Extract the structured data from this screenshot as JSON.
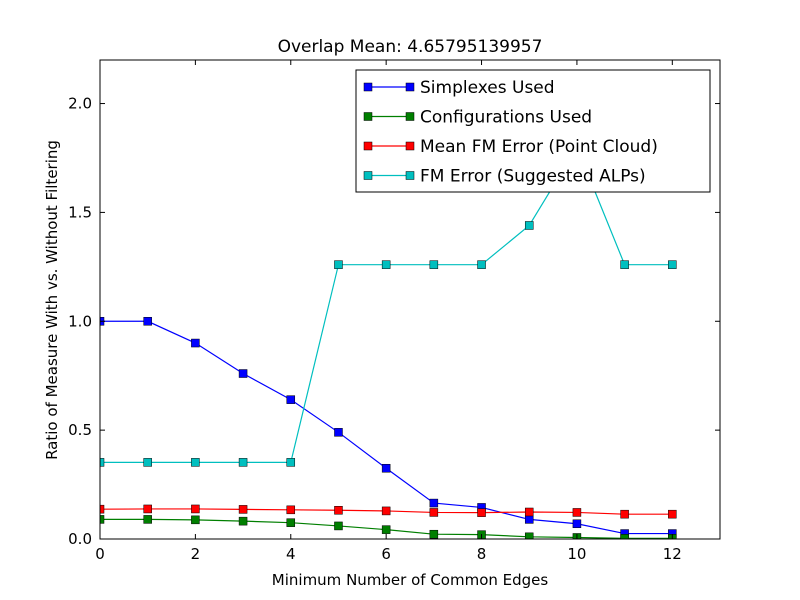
{
  "chart_data": {
    "type": "line",
    "title": "Overlap Mean: 4.65795139957",
    "xlabel": "Minimum Number of Common Edges",
    "ylabel": "Ratio of Measure With vs. Without Filtering",
    "xlim": [
      0,
      13
    ],
    "ylim": [
      0,
      2.2
    ],
    "xticks": [
      0,
      2,
      4,
      6,
      8,
      10,
      12
    ],
    "yticks": [
      0.0,
      0.5,
      1.0,
      1.5,
      2.0
    ],
    "xtick_labels": [
      "0",
      "2",
      "4",
      "6",
      "8",
      "10",
      "12"
    ],
    "ytick_labels": [
      "0.0",
      "0.5",
      "1.0",
      "1.5",
      "2.0"
    ],
    "grid": false,
    "legend_position": "top-right",
    "x": [
      0,
      1,
      2,
      3,
      4,
      5,
      6,
      7,
      8,
      9,
      10,
      11,
      12
    ],
    "series": [
      {
        "name": "Simplexes Used",
        "color": "#0000ff",
        "values": [
          1.0,
          1.0,
          0.9,
          0.76,
          0.64,
          0.49,
          0.325,
          0.165,
          0.145,
          0.09,
          0.07,
          0.025,
          0.025
        ]
      },
      {
        "name": "Configurations Used",
        "color": "#007f00",
        "values": [
          0.09,
          0.09,
          0.088,
          0.082,
          0.075,
          0.06,
          0.043,
          0.022,
          0.02,
          0.01,
          0.007,
          0.003,
          0.003
        ]
      },
      {
        "name": "Mean FM Error (Point Cloud)",
        "color": "#ff0000",
        "values": [
          0.137,
          0.138,
          0.138,
          0.136,
          0.134,
          0.132,
          0.129,
          0.122,
          0.121,
          0.124,
          0.122,
          0.114,
          0.114
        ]
      },
      {
        "name": "FM Error (Suggested ALPs)",
        "color": "#00bfbf",
        "values": [
          0.352,
          0.352,
          0.352,
          0.352,
          0.352,
          1.26,
          1.26,
          1.26,
          1.26,
          1.44,
          1.8,
          1.26,
          1.26
        ]
      }
    ]
  }
}
